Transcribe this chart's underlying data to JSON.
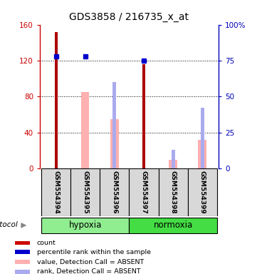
{
  "title": "GDS3858 / 216735_x_at",
  "samples": [
    "GSM554394",
    "GSM554395",
    "GSM554396",
    "GSM554397",
    "GSM554398",
    "GSM554399"
  ],
  "count_values": [
    152,
    0,
    0,
    116,
    0,
    0
  ],
  "percentile_values": [
    78,
    78,
    0,
    75,
    0,
    0
  ],
  "pink_value_absent": [
    0,
    85,
    55,
    0,
    10,
    32
  ],
  "blue_rank_absent": [
    0,
    0,
    60,
    0,
    13,
    42
  ],
  "ylim_left": [
    0,
    160
  ],
  "ylim_right": [
    0,
    100
  ],
  "left_ticks": [
    0,
    40,
    80,
    120,
    160
  ],
  "right_ticks": [
    0,
    25,
    50,
    75,
    100
  ],
  "left_tick_labels": [
    "0",
    "40",
    "80",
    "120",
    "160"
  ],
  "right_tick_labels": [
    "0",
    "25",
    "50",
    "75",
    "100%"
  ],
  "grid_values": [
    40,
    80,
    120
  ],
  "left_color": "#CC0000",
  "right_color": "#0000BB",
  "bar_dark_red": "#AA0000",
  "bar_blue": "#0000CC",
  "bar_pink": "#FFB0B0",
  "bar_light_blue": "#AAAAEE",
  "bg_color": "#D8D8D8",
  "hypoxia_color": "#90EE90",
  "normoxia_color": "#44DD44",
  "protocol_label": "protocol",
  "legend_items": [
    {
      "color": "#CC0000",
      "label": "count"
    },
    {
      "color": "#0000CC",
      "label": "percentile rank within the sample"
    },
    {
      "color": "#FFB0B0",
      "label": "value, Detection Call = ABSENT"
    },
    {
      "color": "#AAAAEE",
      "label": "rank, Detection Call = ABSENT"
    }
  ]
}
